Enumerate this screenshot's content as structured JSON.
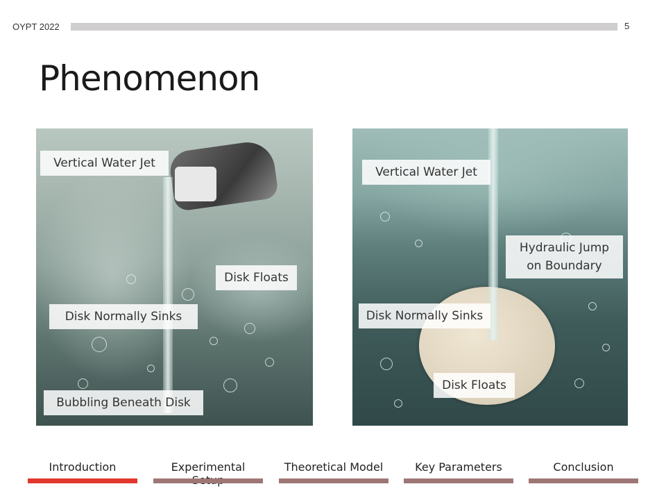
{
  "header": {
    "conference": "OYPT 2022",
    "page_number": "5"
  },
  "slide": {
    "title": "Phenomenon"
  },
  "left_photo": {
    "labels": {
      "jet": "Vertical Water Jet",
      "floats": "Disk Floats",
      "sinks": "Disk Normally Sinks",
      "bubbling": "Bubbling Beneath Disk"
    }
  },
  "right_photo": {
    "labels": {
      "jet": "Vertical Water Jet",
      "jump_line1": "Hydraulic Jump",
      "jump_line2": "on Boundary",
      "sinks": "Disk Normally Sinks",
      "floats": "Disk Floats"
    }
  },
  "nav": {
    "items": [
      {
        "label": "Introduction",
        "active": true
      },
      {
        "label": "Experimental Setup",
        "active": false
      },
      {
        "label": "Theoretical Model",
        "active": false
      },
      {
        "label": "Key Parameters",
        "active": false
      },
      {
        "label": "Conclusion",
        "active": false
      }
    ],
    "active_color": "#e2372c",
    "inactive_color": "#9e7676"
  }
}
